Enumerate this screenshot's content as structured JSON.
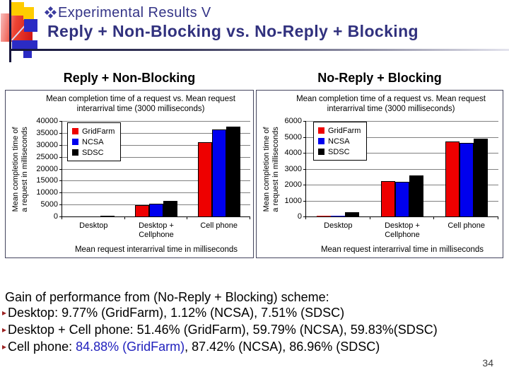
{
  "slide": {
    "title_line1": "Experimental Results V",
    "title_line2": "Reply + Non-Blocking vs. No-Reply + Blocking",
    "page_number": "34"
  },
  "icons": {
    "title_bullet": "diamond-cluster-icon",
    "list_bullet": "arrowhead-right-icon",
    "list_bullet_glyph": "▸"
  },
  "colors": {
    "title_navy": "#31317e",
    "highlight_blue": "#2121bd",
    "bullet_red": "#9b2222",
    "bar_gridfarm": "#ee0000",
    "bar_ncsa": "#0000ee",
    "bar_sdsc": "#000000"
  },
  "gain": {
    "heading": "Gain of performance from (No-Reply + Blocking) scheme:",
    "items": [
      {
        "segments": [
          {
            "text": "Desktop: 9.77% (GridFarm), 1.12% (NCSA), 7.51% (SDSC)"
          }
        ]
      },
      {
        "segments": [
          {
            "text": "Desktop + Cell phone: 51.46% (GridFarm), 59.79% (NCSA), 59.83%(SDSC)"
          }
        ]
      },
      {
        "segments": [
          {
            "text": "Cell phone: "
          },
          {
            "text": "84.88% (GridFarm)",
            "blue": true
          },
          {
            "text": ", 87.42% (NCSA), 86.96% (SDSC)"
          }
        ]
      }
    ]
  },
  "chart_data": [
    {
      "type": "bar",
      "heading": "Reply + Non-Blocking",
      "title": "Mean completion time of a request vs. Mean request interarrival time (3000 milliseconds)",
      "title_lines": [
        "Mean completion time of a request vs. Mean request",
        "interarrival time (3000 milliseconds)"
      ],
      "xlabel": "Mean request interarrival time in milliseconds",
      "ylabel": "Mean completion time of a request in milliseconds",
      "ylabel_lines": [
        "Mean completion time of",
        "a request in milliseconds"
      ],
      "categories": [
        "Desktop",
        "Desktop + Cellphone",
        "Cell phone"
      ],
      "categories_lines": [
        [
          "Desktop"
        ],
        [
          "Desktop +",
          "Cellphone"
        ],
        [
          "Cell phone"
        ]
      ],
      "ylim": [
        0,
        40000
      ],
      "ytick_step": 5000,
      "grid": true,
      "legend_position": "top-left",
      "series": [
        {
          "name": "GridFarm",
          "color": "#ee0000",
          "values": [
            35,
            4600,
            31000
          ]
        },
        {
          "name": "NCSA",
          "color": "#0000ee",
          "values": [
            55,
            5400,
            36400
          ]
        },
        {
          "name": "SDSC",
          "color": "#000000",
          "values": [
            300,
            6400,
            37700
          ]
        }
      ]
    },
    {
      "type": "bar",
      "heading": "No-Reply + Blocking",
      "title": "Mean completion time of a request vs. Mean request interarrival time (3000 milliseconds)",
      "title_lines": [
        "Mean completion time of a request vs. Mean request",
        "interarrival time (3000 milliseconds)"
      ],
      "xlabel": "Mean request interarrival time in milliseconds",
      "ylabel": "Mean completion time of a request in milliseconds",
      "ylabel_lines": [
        "Mean completion time of",
        "a request in milliseconds"
      ],
      "categories": [
        "Desktop",
        "Desktop + Cellphone",
        "Cell phone"
      ],
      "categories_lines": [
        [
          "Desktop"
        ],
        [
          "Desktop +",
          "Cellphone"
        ],
        [
          "Cell phone"
        ]
      ],
      "ylim": [
        0,
        6000
      ],
      "ytick_step": 1000,
      "grid": true,
      "legend_position": "top-left",
      "series": [
        {
          "name": "GridFarm",
          "color": "#ee0000",
          "values": [
            32,
            2230,
            4690
          ]
        },
        {
          "name": "NCSA",
          "color": "#0000ee",
          "values": [
            54,
            2180,
            4610
          ]
        },
        {
          "name": "SDSC",
          "color": "#000000",
          "values": [
            277,
            2570,
            4880
          ]
        }
      ]
    }
  ]
}
